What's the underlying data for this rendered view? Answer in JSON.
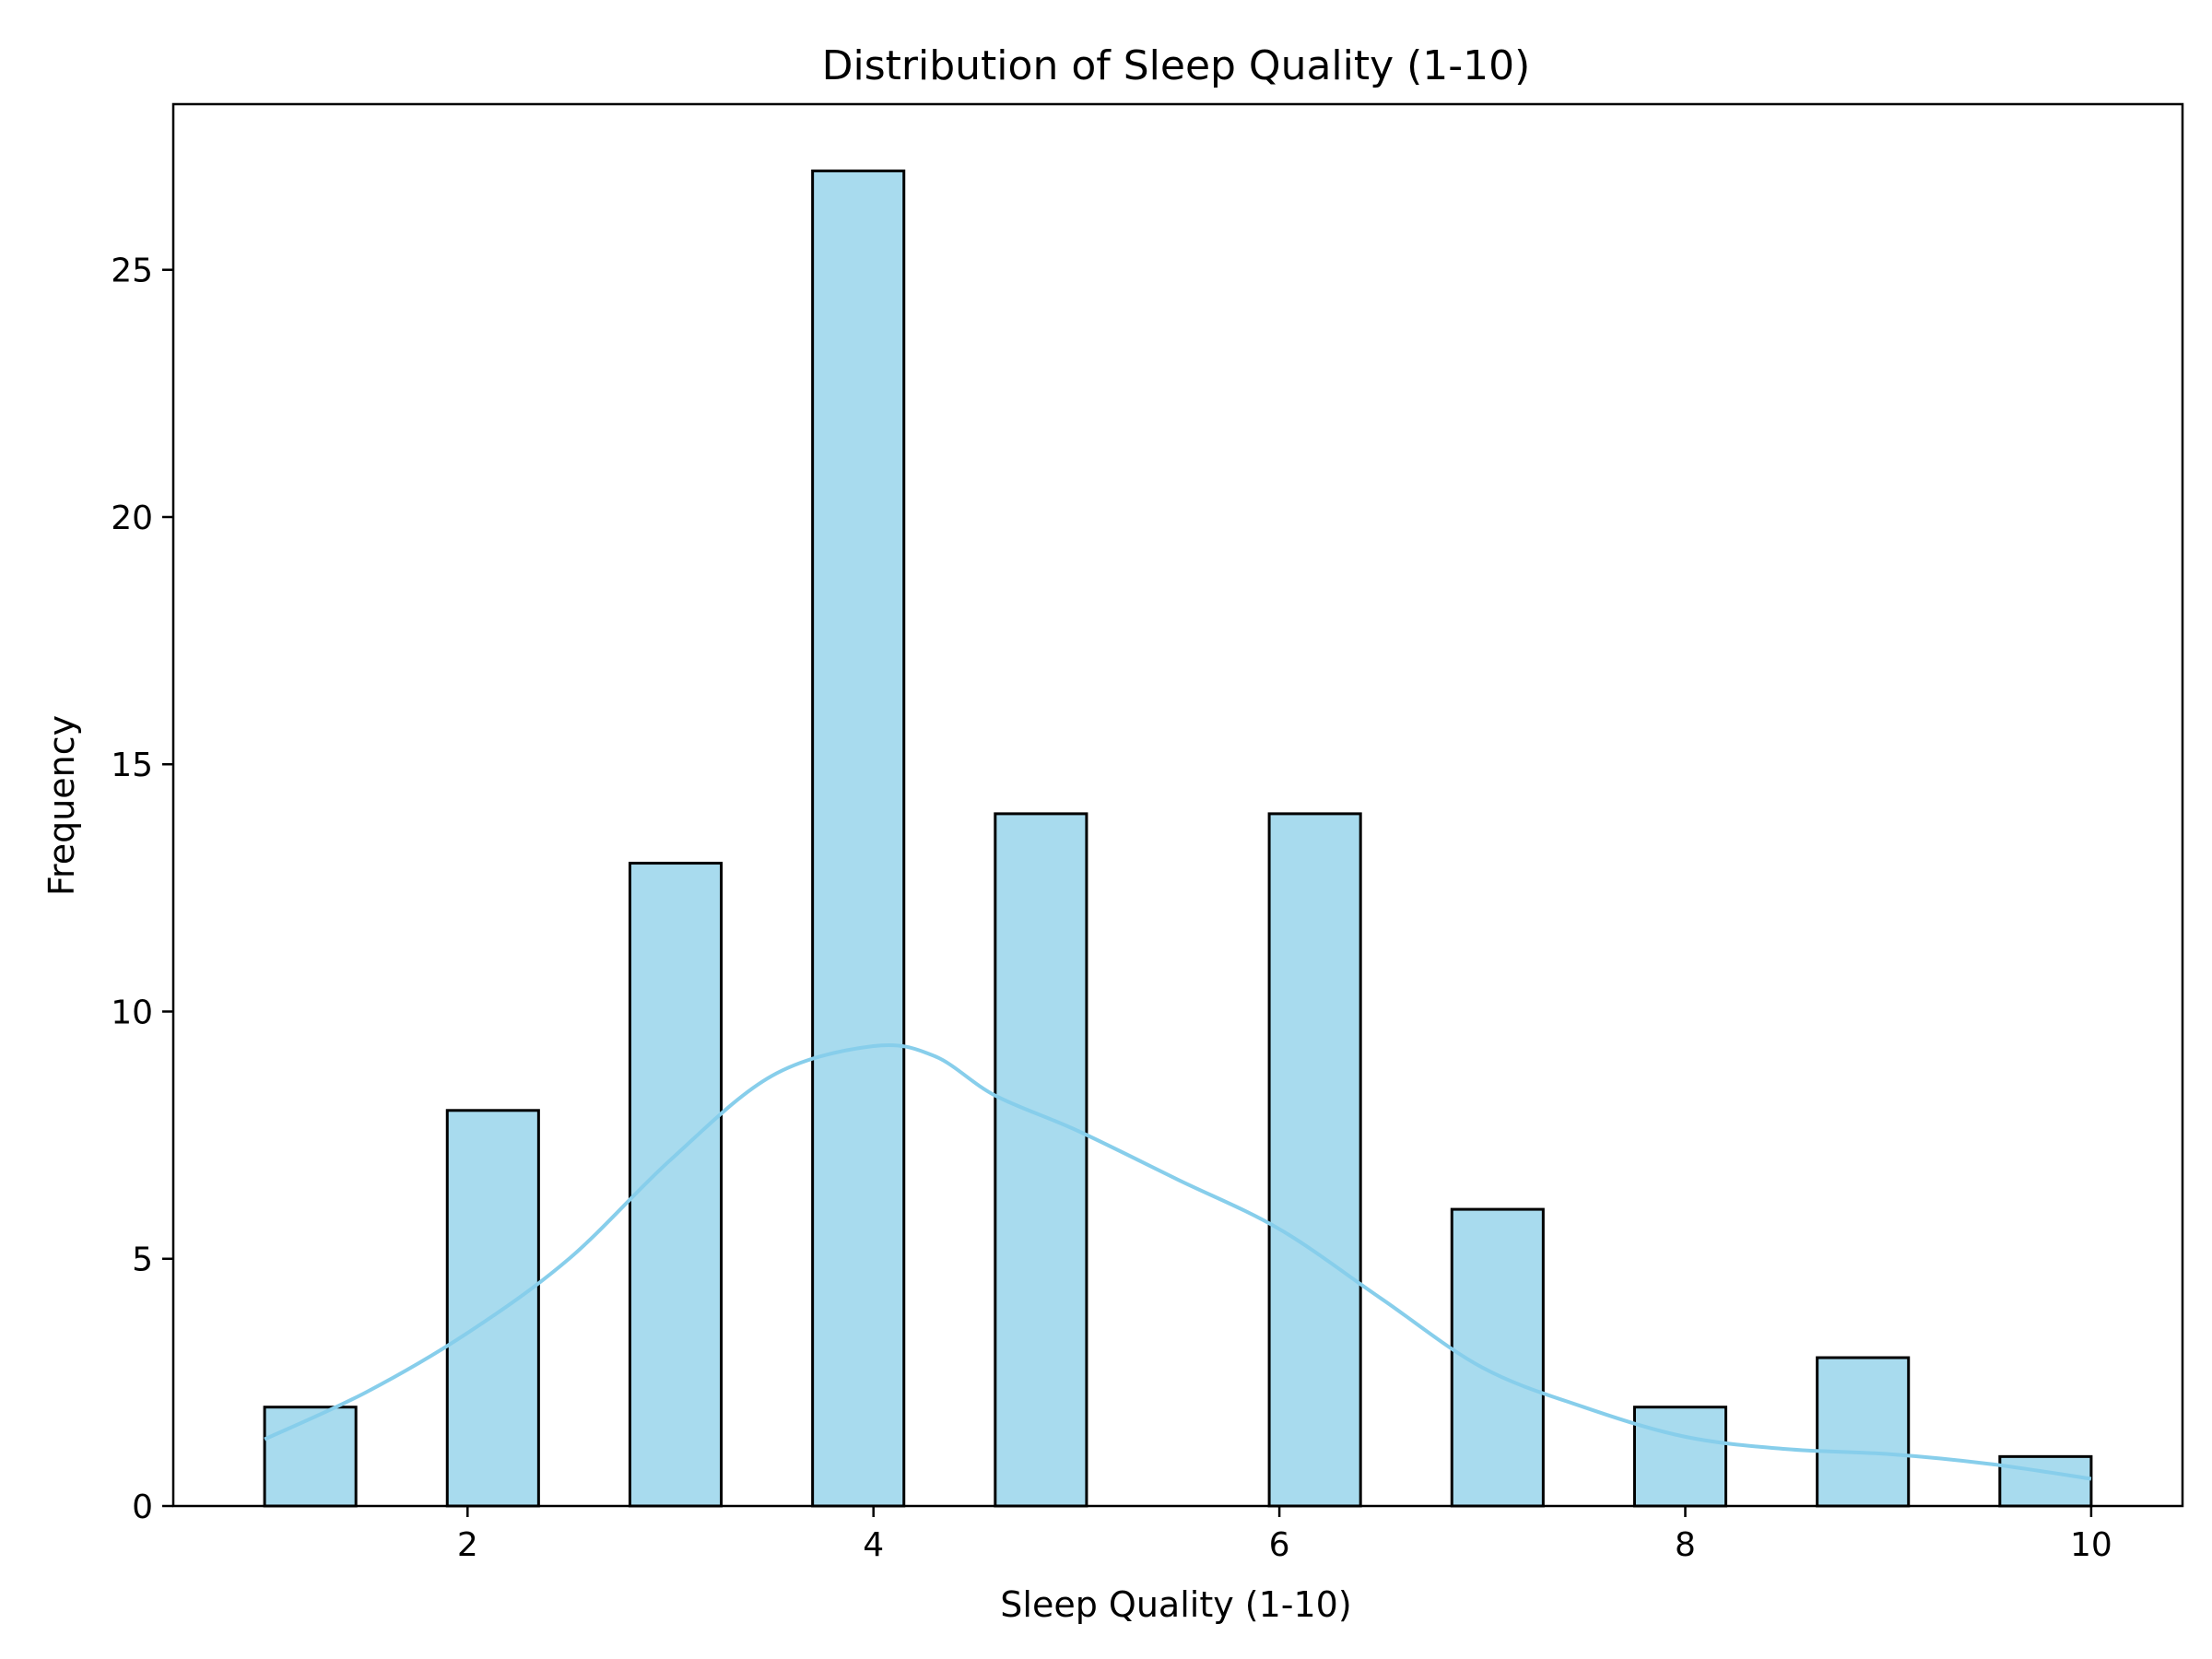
{
  "chart_data": {
    "type": "bar",
    "title": "Distribution of Sleep Quality (1-10)",
    "xlabel": "Sleep Quality (1-10)",
    "ylabel": "Frequency",
    "xlim": [
      0.55,
      10.45
    ],
    "ylim": [
      0,
      28.35
    ],
    "xticks": [
      2,
      4,
      6,
      8,
      10
    ],
    "yticks": [
      0,
      5,
      10,
      15,
      20,
      25
    ],
    "bin_edges": [
      1.0,
      1.45,
      1.9,
      2.35,
      2.8,
      3.25,
      3.7,
      4.15,
      4.6,
      5.05,
      5.5,
      5.95,
      6.4,
      6.85,
      7.3,
      7.75,
      8.2,
      8.65,
      9.1,
      9.55,
      10.0
    ],
    "counts": [
      2,
      0,
      8,
      0,
      13,
      0,
      27,
      0,
      14,
      0,
      0,
      14,
      0,
      6,
      0,
      2,
      0,
      3,
      0,
      1
    ],
    "kde": {
      "x": [
        1.0,
        1.5,
        2.0,
        2.5,
        3.0,
        3.5,
        4.0,
        4.3,
        4.6,
        5.0,
        5.5,
        6.0,
        6.5,
        7.0,
        7.5,
        8.0,
        8.5,
        9.0,
        9.5,
        10.0
      ],
      "y": [
        1.35,
        2.3,
        3.5,
        5.0,
        7.0,
        8.7,
        9.3,
        9.1,
        8.3,
        7.6,
        6.6,
        5.6,
        4.2,
        2.8,
        2.0,
        1.4,
        1.15,
        1.05,
        0.85,
        0.55
      ]
    },
    "grid": false,
    "colors": {
      "bar_fill": "#a8dbee",
      "bar_edge": "#000000",
      "kde_line": "#87ceeb"
    }
  }
}
